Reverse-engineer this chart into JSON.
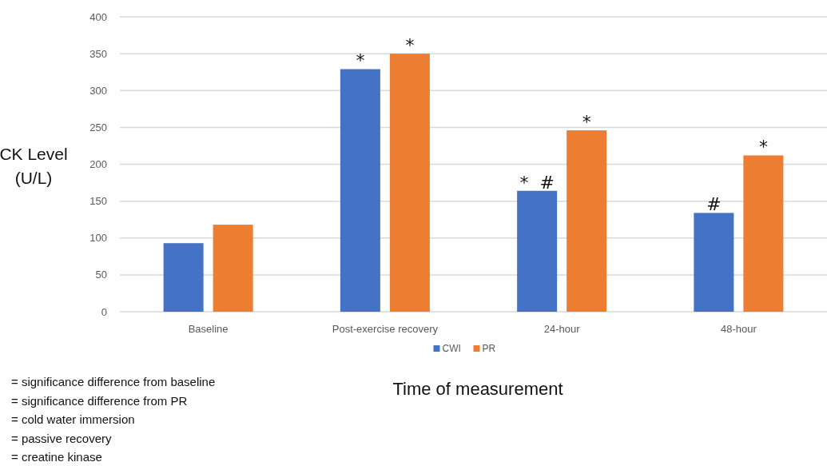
{
  "chart_data": {
    "type": "bar",
    "xlabel": "Time of measurement",
    "ylabel": "CK Level (U/L)",
    "categories": [
      "Baseline",
      "Post-exercise recovery",
      "24-hour",
      "48-hour"
    ],
    "series": [
      {
        "name": "CWI",
        "color": "#4472c4",
        "values": [
          93,
          329,
          164,
          134
        ],
        "value_labels": [
          null,
          "*",
          "*  #",
          "#"
        ]
      },
      {
        "name": "PR",
        "color": "#ed7d31",
        "values": [
          118,
          350,
          246,
          212
        ],
        "value_labels": [
          null,
          "*",
          "*",
          "*"
        ]
      }
    ],
    "ylim": [
      0,
      400
    ],
    "yticks": [
      0,
      50,
      100,
      150,
      200,
      250,
      300,
      350,
      400
    ],
    "grid": "y",
    "legend": "bottom",
    "annotations": [
      "= significance difference from baseline",
      "= significance difference from PR",
      "= cold water immersion",
      "= passive recovery",
      "= creatine kinase"
    ]
  }
}
